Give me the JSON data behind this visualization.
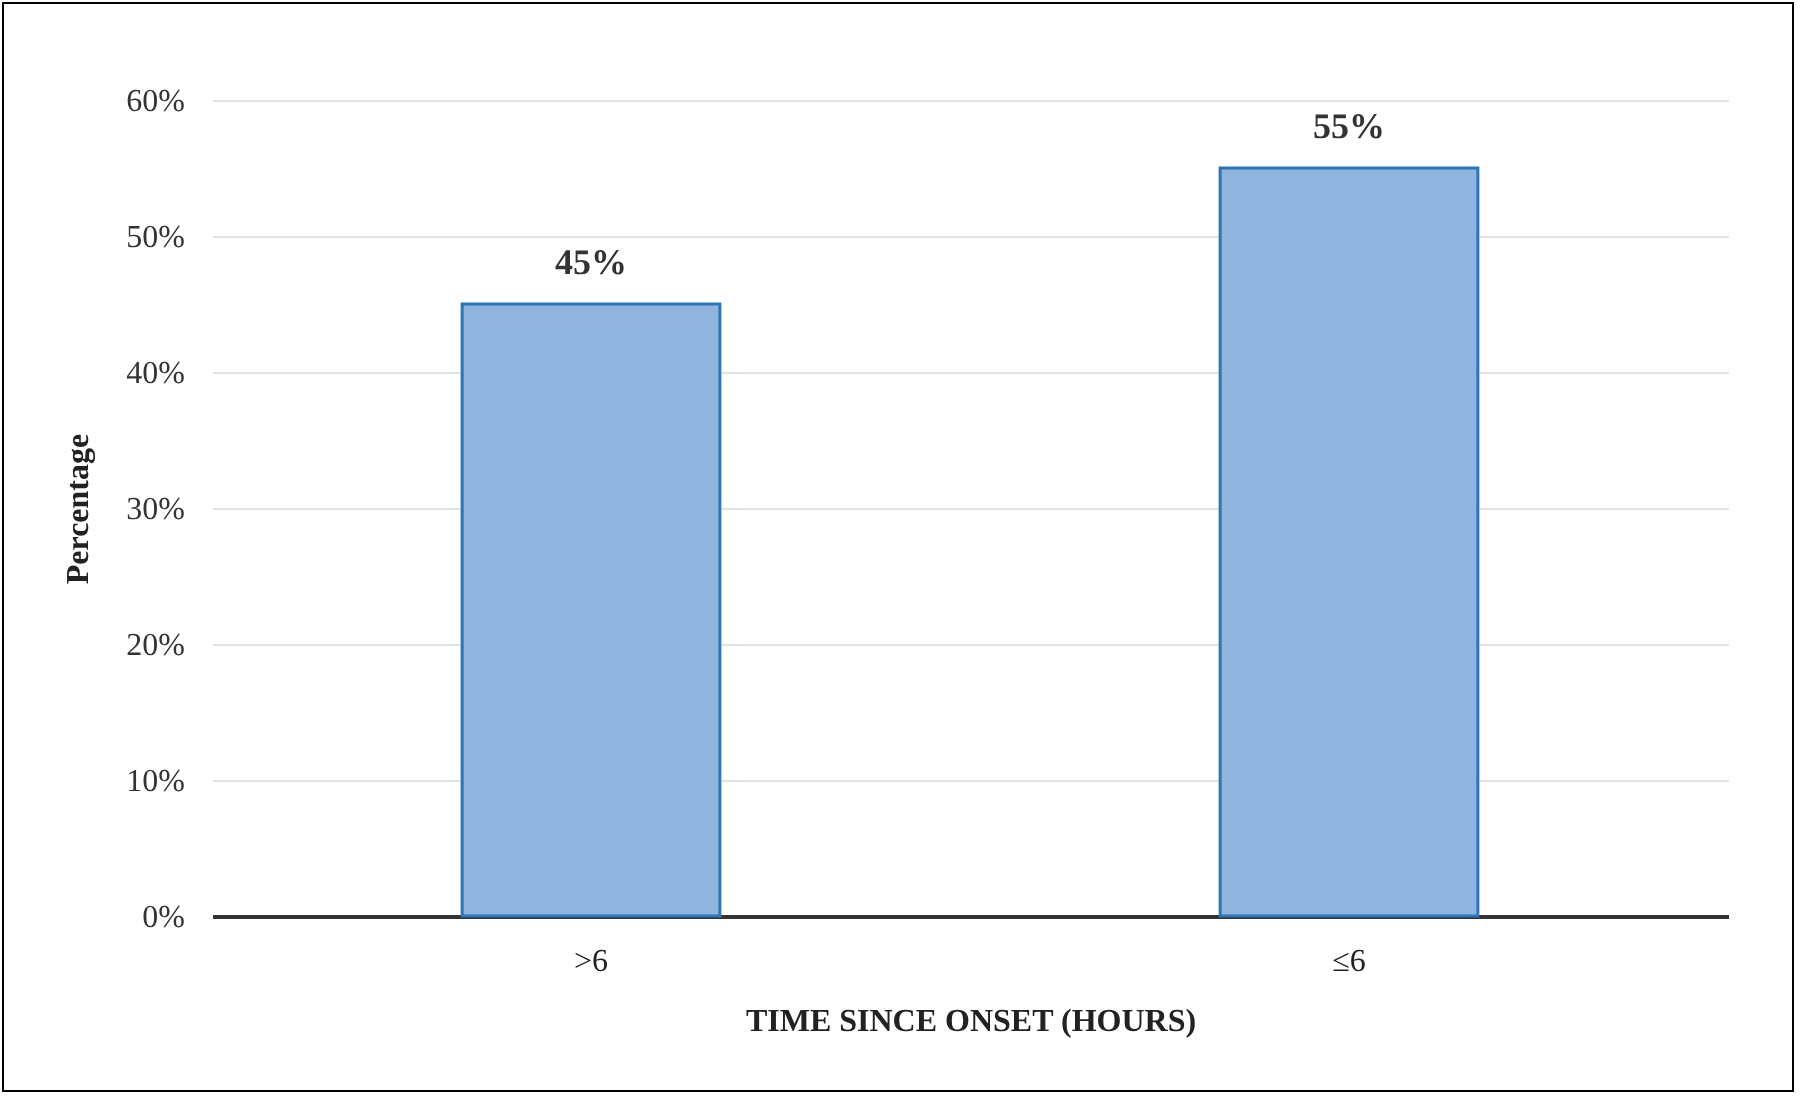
{
  "chart_data": {
    "type": "bar",
    "xlabel": "TIME SINCE ONSET (HOURS)",
    "ylabel": "Percentage",
    "categories": [
      ">6",
      "≤6"
    ],
    "values": [
      45,
      55
    ],
    "color": "#8fb4de",
    "value_labels": [
      "45%",
      "55%"
    ],
    "ylim": [
      0,
      60
    ],
    "yticks": [
      {
        "value": 0,
        "label": "0%"
      },
      {
        "value": 10,
        "label": "10%"
      },
      {
        "value": 20,
        "label": "20%"
      },
      {
        "value": 30,
        "label": "30%"
      },
      {
        "value": 40,
        "label": "40%"
      },
      {
        "value": 50,
        "label": "50%"
      },
      {
        "value": 60,
        "label": "60%"
      }
    ],
    "grid": "y"
  }
}
